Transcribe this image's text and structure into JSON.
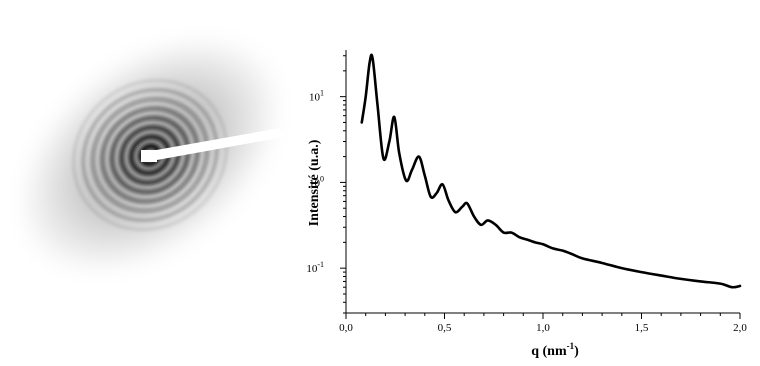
{
  "chart_data": {
    "type": "line",
    "title": "",
    "xlabel": "q (nm",
    "xlabel_sup": "-1",
    "xlabel_close": ")",
    "ylabel": "Intensité (u.a.)",
    "xscale": "linear",
    "yscale": "log",
    "xlim": [
      0.0,
      2.0
    ],
    "ylim": [
      0.03,
      35
    ],
    "grid": false,
    "legend": "none",
    "x_ticks": [
      {
        "value": 0.0,
        "label": "0,0"
      },
      {
        "value": 0.5,
        "label": "0,5"
      },
      {
        "value": 1.0,
        "label": "1,0"
      },
      {
        "value": 1.5,
        "label": "1,5"
      },
      {
        "value": 2.0,
        "label": "2,0"
      }
    ],
    "y_ticks": [
      {
        "value": 0.1,
        "base": "10",
        "exp": "-1"
      },
      {
        "value": 1,
        "base": "10",
        "exp": "0"
      },
      {
        "value": 10,
        "base": "10",
        "exp": "1"
      }
    ],
    "series": [
      {
        "color": "#000000",
        "x": [
          0.08,
          0.1,
          0.12,
          0.135,
          0.16,
          0.19,
          0.22,
          0.245,
          0.27,
          0.305,
          0.335,
          0.37,
          0.4,
          0.43,
          0.46,
          0.49,
          0.52,
          0.555,
          0.59,
          0.615,
          0.65,
          0.685,
          0.72,
          0.76,
          0.8,
          0.84,
          0.88,
          0.92,
          0.96,
          1.0,
          1.05,
          1.1,
          1.15,
          1.2,
          1.3,
          1.4,
          1.5,
          1.6,
          1.7,
          1.8,
          1.9,
          1.96,
          2.0
        ],
        "y": [
          5.0,
          10.0,
          25.0,
          28.0,
          8.0,
          1.9,
          3.0,
          5.8,
          2.2,
          1.05,
          1.4,
          2.0,
          1.2,
          0.68,
          0.75,
          0.95,
          0.62,
          0.45,
          0.52,
          0.57,
          0.4,
          0.32,
          0.36,
          0.32,
          0.26,
          0.26,
          0.23,
          0.215,
          0.2,
          0.19,
          0.17,
          0.16,
          0.145,
          0.13,
          0.115,
          0.1,
          0.09,
          0.082,
          0.075,
          0.07,
          0.066,
          0.06,
          0.062
        ]
      }
    ]
  },
  "pattern": {
    "rings": 8,
    "colors": {
      "dark": "#111111",
      "light": "#ffffff",
      "beam": "#ffffff"
    }
  }
}
